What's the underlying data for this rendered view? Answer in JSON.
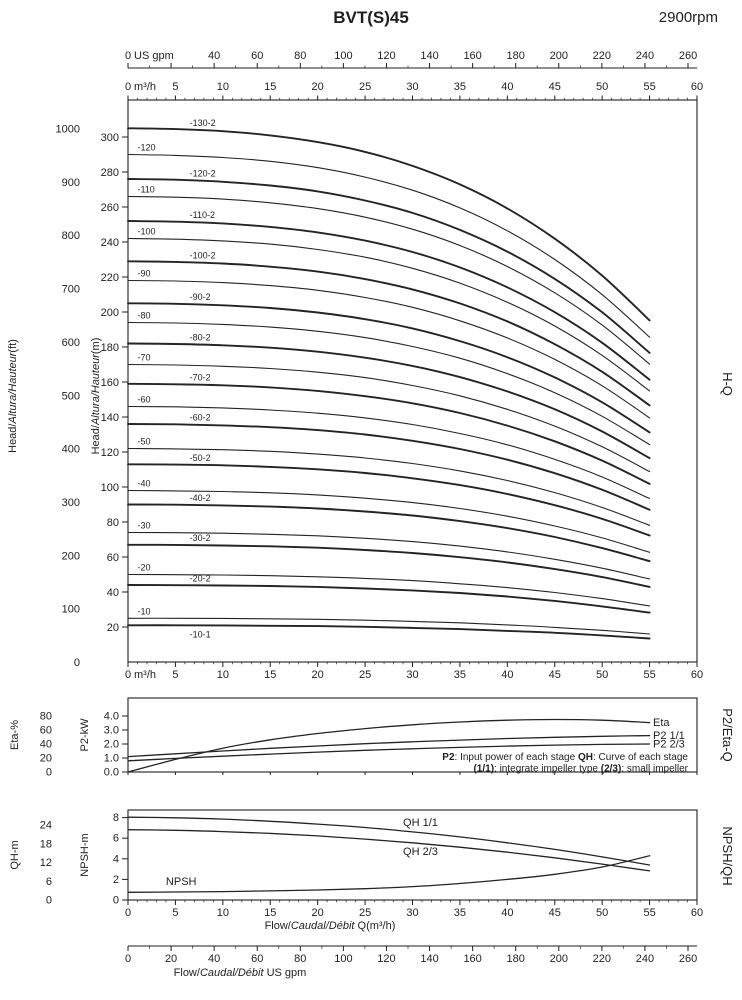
{
  "page": {
    "title": "BVT(S)45",
    "rpm": "2900rpm",
    "ink": "#1f1f1f",
    "background": "#ffffff"
  },
  "top_axes": {
    "gpm": {
      "unit_label": "US gpm",
      "ticks": [
        0,
        40,
        60,
        80,
        100,
        120,
        140,
        160,
        180,
        200,
        220,
        240,
        260
      ]
    },
    "m3h": {
      "unit_label": "m³/h",
      "ticks": [
        0,
        5,
        10,
        15,
        20,
        25,
        30,
        35,
        40,
        45,
        50,
        55,
        60
      ]
    }
  },
  "chart_data": [
    {
      "id": "hq",
      "type": "line",
      "title": "H-Q",
      "x": [
        0,
        5,
        10,
        15,
        20,
        25,
        30,
        35,
        40,
        45,
        50,
        55
      ],
      "xlim": [
        0,
        60
      ],
      "x_unit": "m³/h",
      "y_left_outer": {
        "title": {
          "pre": "Head/",
          "it": "Altura/Hauteur",
          "post": "(ft)"
        },
        "unit": "ft",
        "ticks": [
          0,
          100,
          200,
          300,
          400,
          500,
          600,
          700,
          800,
          900,
          1000
        ]
      },
      "y_left_inner": {
        "title": {
          "pre": "Head/",
          "it": "Altura/Hauteur",
          "post": "(m)"
        },
        "unit": "m",
        "ticks": [
          20,
          40,
          60,
          80,
          100,
          120,
          140,
          160,
          180,
          200,
          220,
          240,
          260,
          280,
          300
        ],
        "ylim": [
          0,
          321
        ]
      },
      "series": [
        {
          "name": "-130-2",
          "values": [
            305,
            304.5,
            303.3,
            300.9,
            297.1,
            291.5,
            283.5,
            272.9,
            259.2,
            241.9,
            220.8,
            195.2
          ]
        },
        {
          "name": "-120",
          "values": [
            290,
            289.5,
            288.3,
            286.1,
            282.5,
            277.1,
            269.6,
            259.5,
            246.4,
            230,
            209.9,
            185.6
          ]
        },
        {
          "name": "-120-2",
          "values": [
            276,
            275.6,
            274.4,
            272.3,
            268.9,
            263.7,
            256.6,
            246.9,
            234.5,
            218.9,
            199.8,
            176.6
          ]
        },
        {
          "name": "-110",
          "values": [
            266,
            265.6,
            264.5,
            262.4,
            259.1,
            254.2,
            247.3,
            238,
            226,
            211,
            192.5,
            170.2
          ]
        },
        {
          "name": "-110-2",
          "values": [
            252,
            251.6,
            250.6,
            248.6,
            245.5,
            240.8,
            234.3,
            225.5,
            214.1,
            199.9,
            182.4,
            161.3
          ]
        },
        {
          "name": "-100",
          "values": [
            242,
            241.6,
            240.6,
            238.8,
            235.7,
            231.3,
            225,
            216.5,
            205.6,
            192,
            175.2,
            154.9
          ]
        },
        {
          "name": "-100-2",
          "values": [
            229,
            228.6,
            227.7,
            225.9,
            223.1,
            218.8,
            212.9,
            204.9,
            194.6,
            181.6,
            165.8,
            146.6
          ]
        },
        {
          "name": "-90",
          "values": [
            218,
            217.7,
            216.8,
            215.1,
            212.4,
            208.3,
            202.7,
            195,
            185.2,
            172.9,
            157.8,
            139.5
          ]
        },
        {
          "name": "-90-2",
          "values": [
            205,
            204.7,
            203.8,
            202.3,
            199.7,
            195.9,
            190.6,
            183.4,
            174.2,
            162.6,
            148.4,
            131.2
          ]
        },
        {
          "name": "-80",
          "values": [
            194,
            193.7,
            192.9,
            191.4,
            189,
            185.4,
            180.3,
            173.6,
            164.8,
            153.9,
            140.4,
            124.2
          ]
        },
        {
          "name": "-80-2",
          "values": [
            182,
            181.7,
            181,
            179.6,
            177.3,
            173.9,
            169.2,
            162.8,
            154.6,
            144.4,
            131.7,
            116.5
          ]
        },
        {
          "name": "-70",
          "values": [
            170,
            169.7,
            169,
            167.7,
            165.6,
            162.5,
            158,
            152.1,
            144.4,
            134.8,
            123,
            108.8
          ]
        },
        {
          "name": "-70-2",
          "values": [
            159,
            158.7,
            158.1,
            156.9,
            154.9,
            151.9,
            147.8,
            142.3,
            135.1,
            126.1,
            115.1,
            101.8
          ]
        },
        {
          "name": "-60",
          "values": [
            146,
            145.8,
            145.2,
            144,
            142.2,
            139.5,
            135.7,
            130.6,
            124.1,
            115.8,
            105.7,
            93.4
          ]
        },
        {
          "name": "-60-2",
          "values": [
            136,
            135.8,
            135.2,
            134.2,
            132.5,
            130,
            126.4,
            121.7,
            115.6,
            107.9,
            98.4,
            87
          ]
        },
        {
          "name": "-50",
          "values": [
            122,
            121.8,
            121.3,
            120.4,
            118.8,
            116.6,
            113.4,
            109.2,
            103.7,
            96.8,
            88.3,
            78.1
          ]
        },
        {
          "name": "-50-2",
          "values": [
            113,
            112.8,
            112.4,
            111.5,
            110.1,
            108,
            105,
            101.1,
            96,
            89.6,
            81.8,
            72.3
          ]
        },
        {
          "name": "-40",
          "values": [
            98,
            97.8,
            97.4,
            96.7,
            95.5,
            93.6,
            91.1,
            87.7,
            83.3,
            77.7,
            70.9,
            62.7
          ]
        },
        {
          "name": "-40-2",
          "values": [
            90,
            89.9,
            89.5,
            88.8,
            87.7,
            86,
            83.7,
            80.5,
            76.5,
            71.4,
            65.1,
            57.6
          ]
        },
        {
          "name": "-30",
          "values": [
            74,
            73.9,
            73.6,
            73,
            72.1,
            70.7,
            68.8,
            66.2,
            62.9,
            58.7,
            53.6,
            47.4
          ]
        },
        {
          "name": "-30-2",
          "values": [
            67,
            66.9,
            66.6,
            66.1,
            65.3,
            64,
            62.3,
            59.9,
            56.9,
            53.1,
            48.5,
            42.9
          ]
        },
        {
          "name": "-20",
          "values": [
            50,
            49.9,
            49.7,
            49.3,
            48.7,
            47.8,
            46.5,
            44.7,
            42.5,
            39.7,
            36.2,
            32
          ]
        },
        {
          "name": "-20-2",
          "values": [
            44,
            43.9,
            43.7,
            43.4,
            42.9,
            42,
            40.9,
            39.4,
            37.4,
            34.9,
            31.8,
            28.2
          ]
        },
        {
          "name": "-10",
          "values": [
            25,
            25,
            24.9,
            24.7,
            24.4,
            23.9,
            23.2,
            22.4,
            21.2,
            19.8,
            18.1,
            16
          ]
        },
        {
          "name": "-10-1",
          "values": [
            21,
            21,
            20.9,
            20.7,
            20.5,
            20.1,
            19.5,
            18.8,
            17.8,
            16.7,
            15.2,
            13.4
          ]
        }
      ]
    },
    {
      "id": "power-efficiency",
      "type": "line",
      "title": "P2/Eta-Q",
      "x": [
        0,
        5,
        10,
        15,
        20,
        25,
        30,
        35,
        40,
        45,
        50,
        55
      ],
      "y_left_outer": {
        "label": "Eta-%",
        "ticks": [
          0,
          20,
          40,
          60,
          80
        ]
      },
      "y_left_inner": {
        "label": "P2-kW",
        "ticks": [
          "0.0",
          "1.0",
          "2.0",
          "3.0",
          "4.0"
        ]
      },
      "series": [
        {
          "name": "Eta",
          "scale": "eta",
          "values": [
            0,
            18,
            34,
            46,
            55,
            62,
            67.5,
            71.5,
            74,
            75,
            74,
            70.5
          ]
        },
        {
          "name": "P2 1/1",
          "scale": "p2",
          "values": [
            1.1,
            1.3,
            1.5,
            1.69,
            1.86,
            2.02,
            2.16,
            2.28,
            2.39,
            2.48,
            2.55,
            2.6
          ]
        },
        {
          "name": "P2 2/3",
          "scale": "p2",
          "values": [
            0.8,
            0.97,
            1.13,
            1.28,
            1.42,
            1.55,
            1.66,
            1.76,
            1.85,
            1.92,
            1.97,
            2.0
          ]
        }
      ],
      "note_lines": [
        [
          {
            "b": "P2"
          },
          {
            "t": ": Input power of each stage "
          },
          {
            "b": "QH"
          },
          {
            "t": ": Curve of each stage"
          }
        ],
        [
          {
            "b": "(1/1)"
          },
          {
            "t": ": integrate impeller type "
          },
          {
            "b": "(2/3)"
          },
          {
            "t": ": small impeller"
          }
        ]
      ]
    },
    {
      "id": "npsh-qh",
      "type": "line",
      "title": "NPSH/QH",
      "x": [
        0,
        5,
        10,
        15,
        20,
        25,
        30,
        35,
        40,
        45,
        50,
        55
      ],
      "y_left_outer": {
        "label": "QH-m",
        "ticks": [
          0,
          6,
          12,
          18,
          24
        ]
      },
      "y_left_inner": {
        "label": "NPSH-m",
        "ticks": [
          0,
          2,
          4,
          6,
          8
        ]
      },
      "series": [
        {
          "name": "QH 1/1",
          "scale": "qh",
          "values": [
            26.5,
            26.3,
            25.9,
            25.2,
            24.3,
            23.2,
            21.8,
            20.2,
            18.3,
            16.2,
            13.8,
            11.2
          ]
        },
        {
          "name": "QH 2/3",
          "scale": "qh",
          "values": [
            22.5,
            22.3,
            21.9,
            21.3,
            20.5,
            19.5,
            18.3,
            16.9,
            15.3,
            13.5,
            11.5,
            9.3
          ]
        },
        {
          "name": "NPSH",
          "scale": "npsh",
          "values": [
            0.75,
            0.78,
            0.82,
            0.88,
            0.97,
            1.1,
            1.3,
            1.6,
            2.0,
            2.5,
            3.2,
            4.3
          ]
        }
      ],
      "x_axis_ticks": [
        0,
        5,
        10,
        15,
        20,
        25,
        30,
        35,
        40,
        45,
        50,
        55,
        60
      ],
      "x_axis_title": {
        "pre": "Flow/",
        "it": "Caudal/Débit",
        "post": " Q(m³/h)"
      }
    }
  ],
  "bottom_axis_gpm": {
    "ticks": [
      0,
      20,
      40,
      60,
      80,
      100,
      120,
      140,
      160,
      180,
      200,
      220,
      240,
      260
    ],
    "title": {
      "pre": "Flow/",
      "it": "Caudal/Débit",
      "post": "  US gpm"
    }
  }
}
